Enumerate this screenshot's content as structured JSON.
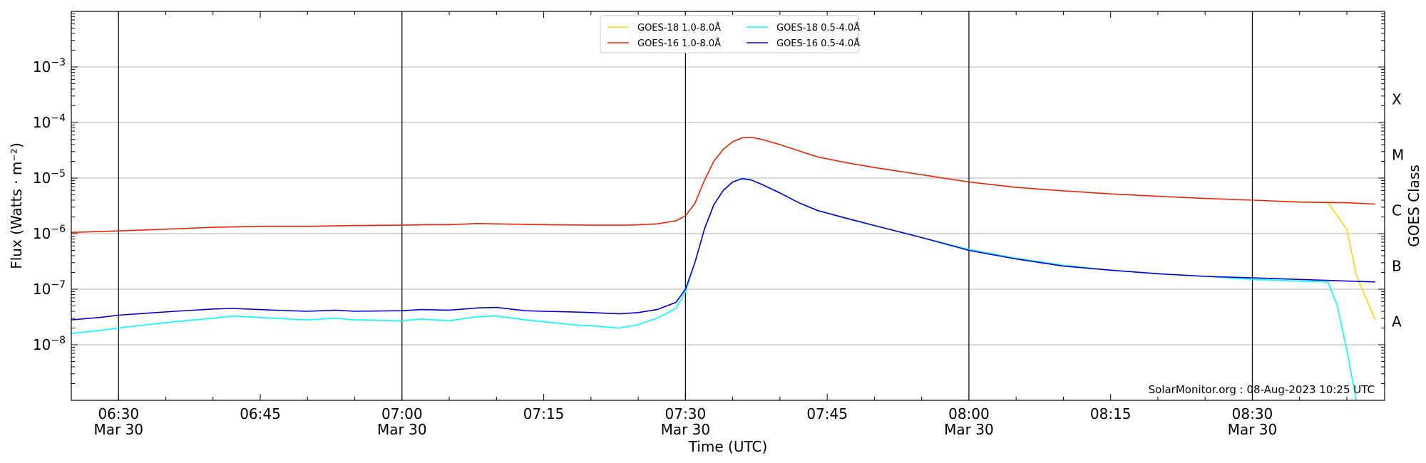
{
  "chart_data": {
    "type": "line",
    "title": "",
    "xlabel": "Time (UTC)",
    "ylabel": "Flux (Watts · m⁻²)",
    "right_ylabel": "GOES Class",
    "y_scale": "log",
    "ylim": [
      1e-09,
      0.01
    ],
    "xlim": [
      "06:25",
      "08:44"
    ],
    "x_ticks": [
      {
        "time": "06:30",
        "line1": "06:30",
        "line2": "Mar 30"
      },
      {
        "time": "06:45",
        "line1": "06:45",
        "line2": ""
      },
      {
        "time": "07:00",
        "line1": "07:00",
        "line2": "Mar 30"
      },
      {
        "time": "07:15",
        "line1": "07:15",
        "line2": ""
      },
      {
        "time": "07:30",
        "line1": "07:30",
        "line2": "Mar 30"
      },
      {
        "time": "07:45",
        "line1": "07:45",
        "line2": ""
      },
      {
        "time": "08:00",
        "line1": "08:00",
        "line2": "Mar 30"
      },
      {
        "time": "08:15",
        "line1": "08:15",
        "line2": ""
      },
      {
        "time": "08:30",
        "line1": "08:30",
        "line2": "Mar 30"
      }
    ],
    "vertical_lines": [
      "06:30",
      "07:00",
      "07:30",
      "08:00",
      "08:30"
    ],
    "y_ticks": [
      {
        "value": 0.001,
        "base": "10",
        "exp": "−3"
      },
      {
        "value": 0.0001,
        "base": "10",
        "exp": "−4"
      },
      {
        "value": 1e-05,
        "base": "10",
        "exp": "−5"
      },
      {
        "value": 1e-06,
        "base": "10",
        "exp": "−6"
      },
      {
        "value": 1e-07,
        "base": "10",
        "exp": "−7"
      },
      {
        "value": 1e-08,
        "base": "10",
        "exp": "−8"
      }
    ],
    "gridlines_y": [
      0.001,
      0.0001,
      1e-05,
      1e-06,
      1e-07,
      1e-08
    ],
    "goes_classes": [
      {
        "label": "X",
        "value": 0.00026
      },
      {
        "label": "M",
        "value": 2.6e-05
      },
      {
        "label": "C",
        "value": 2.6e-06
      },
      {
        "label": "B",
        "value": 2.6e-07
      },
      {
        "label": "A",
        "value": 2.6e-08
      }
    ],
    "legend": {
      "placement": "top-center",
      "columns": [
        [
          "GOES-18 1.0-8.0Å",
          "GOES-16 1.0-8.0Å"
        ],
        [
          "GOES-18 0.5-4.0Å",
          "GOES-16 0.5-4.0Å"
        ]
      ]
    },
    "series": [
      {
        "name": "GOES-18 1.0-8.0Å",
        "color": "#ffd400",
        "x": [
          "08:33",
          "08:38",
          "08:40",
          "08:41",
          "08:43"
        ],
        "y": [
          3.8e-06,
          3.6e-06,
          1.2e-06,
          1.8e-07,
          2.8e-08
        ]
      },
      {
        "name": "GOES-16 1.0-8.0Å",
        "color": "#ee2200",
        "x": [
          "06:25",
          "06:30",
          "06:35",
          "06:40",
          "06:45",
          "06:50",
          "06:55",
          "07:00",
          "07:03",
          "07:05",
          "07:08",
          "07:10",
          "07:15",
          "07:20",
          "07:24",
          "07:27",
          "07:29",
          "07:30",
          "07:31",
          "07:32",
          "07:33",
          "07:34",
          "07:35",
          "07:36",
          "07:37",
          "07:38",
          "07:40",
          "07:42",
          "07:44",
          "07:47",
          "07:50",
          "07:55",
          "08:00",
          "08:05",
          "08:10",
          "08:15",
          "08:20",
          "08:25",
          "08:30",
          "08:35",
          "08:40",
          "08:43"
        ],
        "y": [
          1.05e-06,
          1.12e-06,
          1.2e-06,
          1.3e-06,
          1.35e-06,
          1.35e-06,
          1.4e-06,
          1.42e-06,
          1.45e-06,
          1.45e-06,
          1.52e-06,
          1.5e-06,
          1.45e-06,
          1.42e-06,
          1.42e-06,
          1.5e-06,
          1.7e-06,
          2.1e-06,
          3.5e-06,
          9e-06,
          2e-05,
          3.3e-05,
          4.5e-05,
          5.3e-05,
          5.4e-05,
          5e-05,
          4e-05,
          3.1e-05,
          2.4e-05,
          1.9e-05,
          1.55e-05,
          1.15e-05,
          8.5e-06,
          6.8e-06,
          5.9e-06,
          5.2e-06,
          4.7e-06,
          4.3e-06,
          4e-06,
          3.7e-06,
          3.6e-06,
          3.4e-06
        ]
      },
      {
        "name": "GOES-18 0.5-4.0Å",
        "color": "#00ffff",
        "x": [
          "06:25",
          "06:28",
          "06:30",
          "06:33",
          "06:36",
          "06:40",
          "06:42",
          "06:45",
          "06:48",
          "06:50",
          "06:53",
          "06:55",
          "07:00",
          "07:02",
          "07:05",
          "07:08",
          "07:10",
          "07:13",
          "07:15",
          "07:18",
          "07:20",
          "07:23",
          "07:25",
          "07:27",
          "07:29",
          "07:30",
          "07:31",
          "07:32",
          "07:33",
          "07:34",
          "07:35",
          "07:36",
          "07:37",
          "07:38",
          "07:40",
          "07:42",
          "07:44",
          "07:47",
          "07:50",
          "07:55",
          "08:00",
          "08:05",
          "08:10",
          "08:15",
          "08:20",
          "08:25",
          "08:30",
          "08:35",
          "08:38",
          "08:39",
          "08:40",
          "08:41"
        ],
        "y": [
          1.6e-08,
          1.8e-08,
          2e-08,
          2.3e-08,
          2.6e-08,
          3e-08,
          3.3e-08,
          3.1e-08,
          2.9e-08,
          2.8e-08,
          3e-08,
          2.8e-08,
          2.7e-08,
          2.9e-08,
          2.7e-08,
          3.2e-08,
          3.3e-08,
          2.8e-08,
          2.6e-08,
          2.3e-08,
          2.2e-08,
          2e-08,
          2.3e-08,
          3e-08,
          4.5e-08,
          9e-08,
          3e-07,
          1.2e-06,
          3.3e-06,
          6e-06,
          8.5e-06,
          9.8e-06,
          9.2e-06,
          7.8e-06,
          5.4e-06,
          3.6e-06,
          2.6e-06,
          1.9e-06,
          1.4e-06,
          8.5e-07,
          5.2e-07,
          3.6e-07,
          2.7e-07,
          2.2e-07,
          1.9e-07,
          1.7e-07,
          1.5e-07,
          1.4e-07,
          1.35e-07,
          5e-08,
          8e-09,
          1e-09
        ]
      },
      {
        "name": "GOES-16 0.5-4.0Å",
        "color": "#0000dd",
        "x": [
          "06:25",
          "06:28",
          "06:30",
          "06:33",
          "06:36",
          "06:40",
          "06:42",
          "06:45",
          "06:48",
          "06:50",
          "06:53",
          "06:55",
          "07:00",
          "07:02",
          "07:05",
          "07:08",
          "07:10",
          "07:13",
          "07:15",
          "07:18",
          "07:20",
          "07:23",
          "07:25",
          "07:27",
          "07:29",
          "07:30",
          "07:31",
          "07:32",
          "07:33",
          "07:34",
          "07:35",
          "07:36",
          "07:37",
          "07:38",
          "07:40",
          "07:42",
          "07:44",
          "07:47",
          "07:50",
          "07:55",
          "08:00",
          "08:05",
          "08:10",
          "08:15",
          "08:20",
          "08:25",
          "08:30",
          "08:35",
          "08:40",
          "08:43"
        ],
        "y": [
          2.8e-08,
          3.1e-08,
          3.4e-08,
          3.7e-08,
          4e-08,
          4.4e-08,
          4.5e-08,
          4.3e-08,
          4.1e-08,
          4e-08,
          4.2e-08,
          4e-08,
          4.1e-08,
          4.3e-08,
          4.2e-08,
          4.6e-08,
          4.7e-08,
          4.1e-08,
          4e-08,
          3.9e-08,
          3.8e-08,
          3.6e-08,
          3.8e-08,
          4.3e-08,
          5.8e-08,
          1e-07,
          3e-07,
          1.2e-06,
          3.3e-06,
          6e-06,
          8.5e-06,
          9.8e-06,
          9.2e-06,
          7.8e-06,
          5.4e-06,
          3.6e-06,
          2.6e-06,
          1.9e-06,
          1.4e-06,
          8.5e-07,
          5e-07,
          3.5e-07,
          2.6e-07,
          2.2e-07,
          1.9e-07,
          1.7e-07,
          1.6e-07,
          1.5e-07,
          1.4e-07,
          1.35e-07
        ]
      }
    ],
    "credit": "SolarMonitor.org : 08-Aug-2023 10:25 UTC",
    "grid": true
  }
}
